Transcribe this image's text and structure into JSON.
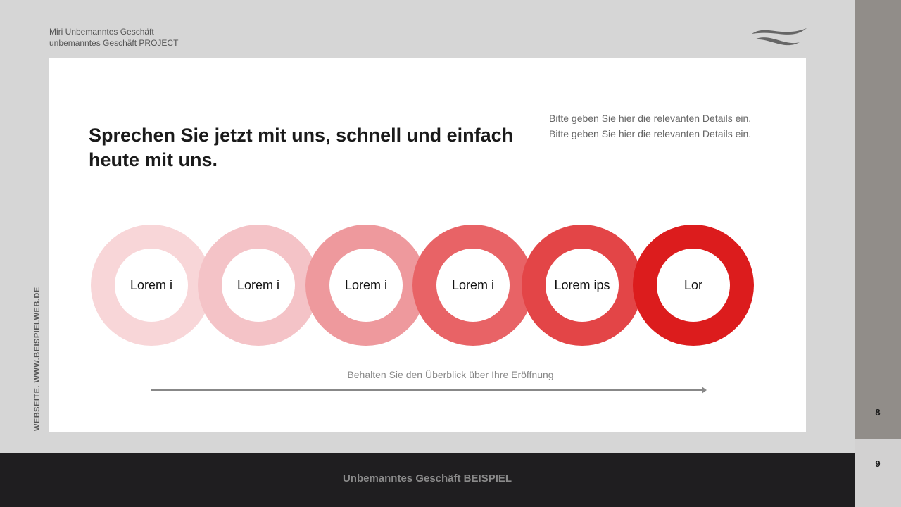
{
  "header": {
    "line1": "Miri Unbemanntes Geschäft",
    "line2": "unbemanntes Geschäft PROJECT"
  },
  "main": {
    "title": "Sprechen Sie jetzt mit uns, schnell und einfach heute mit uns.",
    "details": [
      "Bitte geben Sie hier die relevanten Details ein.",
      "Bitte geben Sie hier die relevanten Details ein."
    ],
    "steps": [
      {
        "label": "Lorem i",
        "color": "#f8d6d8"
      },
      {
        "label": "Lorem i",
        "color": "#f4c3c7"
      },
      {
        "label": "Lorem i",
        "color": "#ee999d"
      },
      {
        "label": "Lorem i",
        "color": "#e86366"
      },
      {
        "label": "Lorem ips",
        "color": "#e34547"
      },
      {
        "label": "Lor",
        "color": "#dc1c1d"
      }
    ],
    "caption": "Behalten Sie den Überblick über Ihre Eröffnung"
  },
  "side_text": "WEBSEITE. WWW.BEISPIELWEB.DE",
  "pages": {
    "current": "8",
    "next": "9"
  },
  "footer": "Unbemanntes Geschäft BEISPIEL",
  "logo_icon": "wave-logo-icon"
}
